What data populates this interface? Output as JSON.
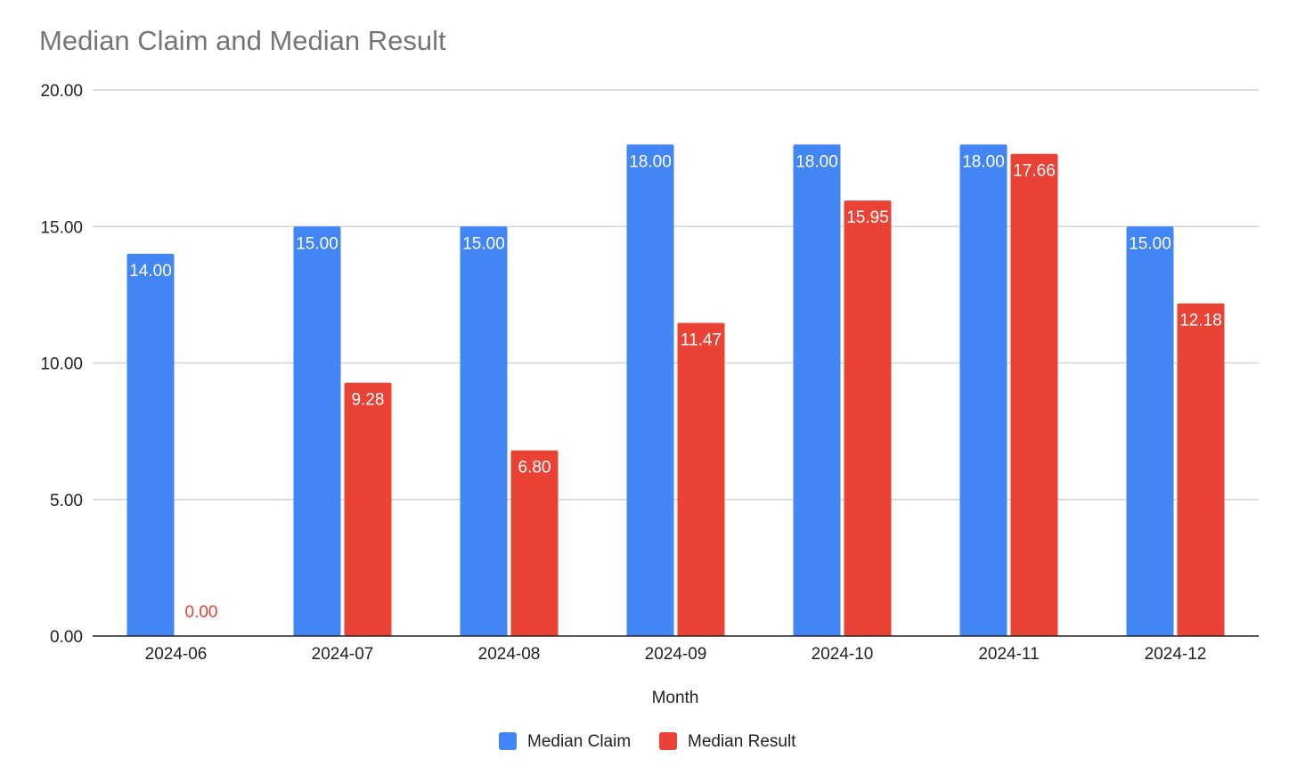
{
  "chart_data": {
    "type": "bar",
    "title": "Median Claim and Median Result",
    "xlabel": "Month",
    "ylabel": "",
    "ylim": [
      0,
      20
    ],
    "yticks": [
      "0.00",
      "5.00",
      "10.00",
      "15.00",
      "20.00"
    ],
    "grid": true,
    "legend_position": "bottom",
    "categories": [
      "2024-06",
      "2024-07",
      "2024-08",
      "2024-09",
      "2024-10",
      "2024-11",
      "2024-12"
    ],
    "series": [
      {
        "name": "Median Claim",
        "color": "#4285f4",
        "values": [
          14.0,
          15.0,
          15.0,
          18.0,
          18.0,
          18.0,
          15.0
        ],
        "labels": [
          "14.00",
          "15.00",
          "15.00",
          "18.00",
          "18.00",
          "18.00",
          "15.00"
        ]
      },
      {
        "name": "Median Result",
        "color": "#ea4335",
        "values": [
          0.0,
          9.28,
          6.8,
          11.47,
          15.95,
          17.66,
          12.18
        ],
        "labels": [
          "0.00",
          "9.28",
          "6.80",
          "11.47",
          "15.95",
          "17.66",
          "12.18"
        ]
      }
    ]
  }
}
